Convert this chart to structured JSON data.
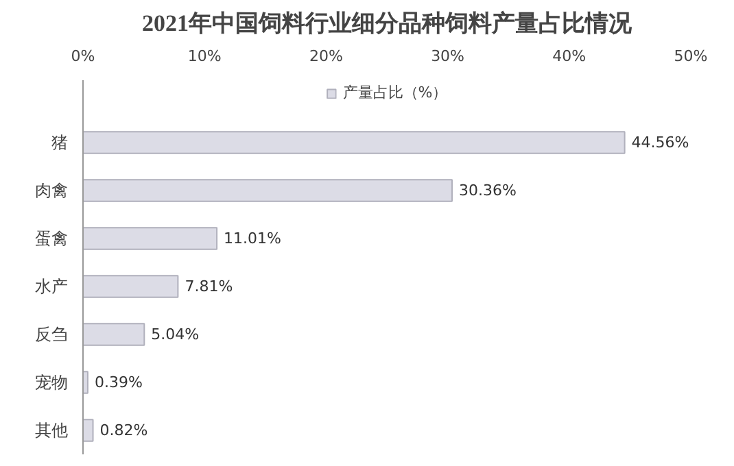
{
  "chart_data": {
    "type": "bar",
    "orientation": "horizontal",
    "title": "2021年中国饲料行业细分品种饲料产量占比情况",
    "categories": [
      "猪",
      "肉禽",
      "蛋禽",
      "水产",
      "反刍",
      "宠物",
      "其他"
    ],
    "series": [
      {
        "name": "产量占比（%）",
        "color": "#dcdce6",
        "values": [
          44.56,
          30.36,
          11.01,
          7.81,
          5.04,
          0.39,
          0.82
        ]
      }
    ],
    "value_labels": [
      "44.56%",
      "30.36%",
      "11.01%",
      "7.81%",
      "5.04%",
      "0.39%",
      "0.82%"
    ],
    "xlim": [
      0,
      50
    ],
    "xticks": [
      {
        "value": 0,
        "label": "0%"
      },
      {
        "value": 10,
        "label": "10%"
      },
      {
        "value": 20,
        "label": "20%"
      },
      {
        "value": 30,
        "label": "30%"
      },
      {
        "value": 40,
        "label": "40%"
      },
      {
        "value": 50,
        "label": "50%"
      }
    ],
    "legend": "top",
    "grid": false
  }
}
